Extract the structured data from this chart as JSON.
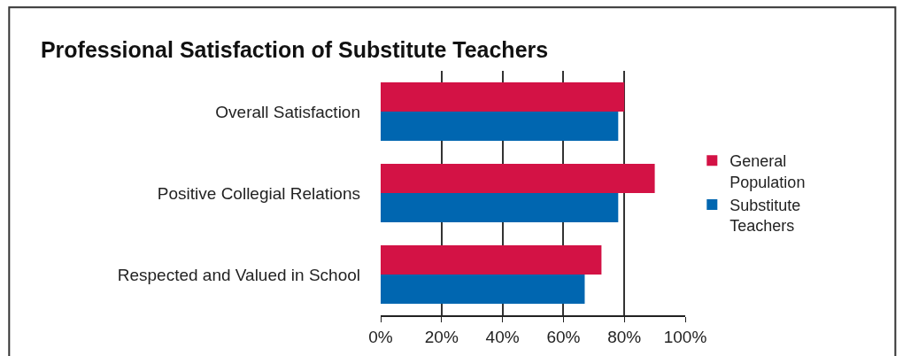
{
  "chart_data": {
    "type": "bar",
    "title": "Professional Satisfaction of Substitute Teachers",
    "orientation": "horizontal",
    "categories": [
      "Overall Satisfaction",
      "Positive Collegial Relations",
      "Respected and Valued in School"
    ],
    "series": [
      {
        "name": "General Population",
        "color": "#d31245",
        "values": [
          80,
          90,
          72.5
        ]
      },
      {
        "name": "Substitute Teachers",
        "color": "#0066b0",
        "values": [
          78,
          78,
          67
        ]
      }
    ],
    "xlim": [
      0,
      100
    ],
    "xticks": [
      {
        "value": 0,
        "label": "0%"
      },
      {
        "value": 20,
        "label": "20%"
      },
      {
        "value": 40,
        "label": "40%"
      },
      {
        "value": 60,
        "label": "60%"
      },
      {
        "value": 80,
        "label": "80%"
      },
      {
        "value": 100,
        "label": "100%"
      }
    ],
    "grid": "x",
    "legend": "right"
  }
}
